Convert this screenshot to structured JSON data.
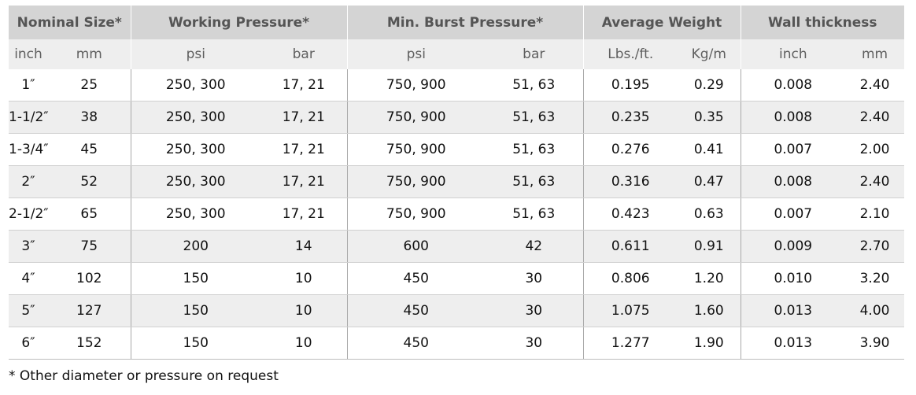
{
  "table": {
    "group_headers": [
      {
        "label": "Nominal Size*",
        "span": 2
      },
      {
        "label": "Working Pressure*",
        "span": 2
      },
      {
        "label": "Min. Burst Pressure*",
        "span": 2
      },
      {
        "label": "Average Weight",
        "span": 2
      },
      {
        "label": "Wall thickness",
        "span": 2
      }
    ],
    "unit_headers": [
      "inch",
      "mm",
      "psi",
      "bar",
      "psi",
      "bar",
      "Lbs./ft.",
      "Kg/m",
      "inch",
      "mm"
    ],
    "rows": [
      [
        "1″",
        "25",
        "250, 300",
        "17, 21",
        "750, 900",
        "51, 63",
        "0.195",
        "0.29",
        "0.008",
        "2.40"
      ],
      [
        "1-1/2″",
        "38",
        "250, 300",
        "17, 21",
        "750, 900",
        "51, 63",
        "0.235",
        "0.35",
        "0.008",
        "2.40"
      ],
      [
        "1-3/4″",
        "45",
        "250, 300",
        "17, 21",
        "750, 900",
        "51, 63",
        "0.276",
        "0.41",
        "0.007",
        "2.00"
      ],
      [
        "2″",
        "52",
        "250, 300",
        "17, 21",
        "750, 900",
        "51, 63",
        "0.316",
        "0.47",
        "0.008",
        "2.40"
      ],
      [
        "2-1/2″",
        "65",
        "250, 300",
        "17, 21",
        "750, 900",
        "51, 63",
        "0.423",
        "0.63",
        "0.007",
        "2.10"
      ],
      [
        "3″",
        "75",
        "200",
        "14",
        "600",
        "42",
        "0.611",
        "0.91",
        "0.009",
        "2.70"
      ],
      [
        "4″",
        "102",
        "150",
        "10",
        "450",
        "30",
        "0.806",
        "1.20",
        "0.010",
        "3.20"
      ],
      [
        "5″",
        "127",
        "150",
        "10",
        "450",
        "30",
        "1.075",
        "1.60",
        "0.013",
        "4.00"
      ],
      [
        "6″",
        "152",
        "150",
        "10",
        "450",
        "30",
        "1.277",
        "1.90",
        "0.013",
        "3.90"
      ]
    ]
  },
  "footnote": "* Other diameter or pressure on request",
  "colors": {
    "group_header_bg": "#d4d4d4",
    "subheader_bg": "#eeeeee",
    "alt_row_bg": "#eeeeee",
    "header_text": "#555555"
  }
}
